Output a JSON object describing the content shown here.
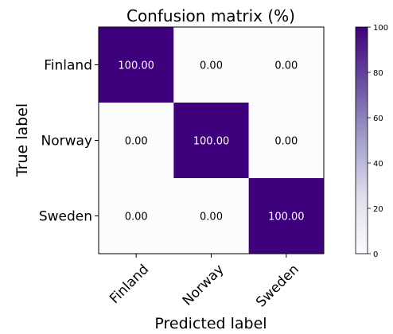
{
  "chart_data": {
    "type": "heatmap",
    "title": "Confusion matrix (%)",
    "xlabel": "Predicted label",
    "ylabel": "True label",
    "x_categories": [
      "Finland",
      "Norway",
      "Sweden"
    ],
    "y_categories": [
      "Finland",
      "Norway",
      "Sweden"
    ],
    "values": [
      [
        100.0,
        0.0,
        0.0
      ],
      [
        0.0,
        100.0,
        0.0
      ],
      [
        0.0,
        0.0,
        100.0
      ]
    ],
    "value_labels": [
      [
        "100.00",
        "0.00",
        "0.00"
      ],
      [
        "0.00",
        "100.00",
        "0.00"
      ],
      [
        "0.00",
        "0.00",
        "100.00"
      ]
    ],
    "colorbar": {
      "min": 0,
      "max": 100,
      "ticks": [
        "0",
        "20",
        "40",
        "60",
        "80",
        "100"
      ],
      "low_color": "#fcfbfd",
      "high_color": "#3f007d"
    }
  }
}
